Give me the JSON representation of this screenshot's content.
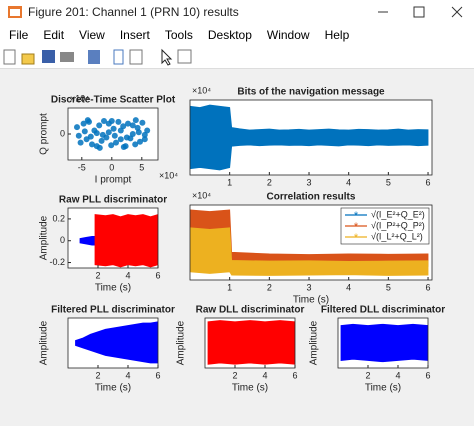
{
  "window": {
    "title": "Figure 201: Channel 1 (PRN 10) results",
    "menu": [
      "File",
      "Edit",
      "View",
      "Insert",
      "Tools",
      "Desktop",
      "Window",
      "Help"
    ]
  },
  "chart_data": [
    {
      "type": "scatter",
      "title": "Discrete-Time Scatter Plot",
      "xlabel": "I prompt",
      "ylabel": "Q prompt",
      "x_exponent": "×10⁴",
      "y_exponent": "×10⁴",
      "xlim": [
        -73000,
        77000
      ],
      "ylim": [
        -15000,
        15000
      ],
      "xticks": [
        {
          "value": -50000,
          "label": "-5"
        },
        {
          "value": 0,
          "label": "0"
        },
        {
          "value": 50000,
          "label": "5"
        }
      ],
      "yticks": [
        0
      ],
      "series": [
        {
          "color": "#0072bd",
          "x": [
            -58000,
            -52000,
            -47000,
            -42000,
            -38000,
            -33000,
            -29000,
            -25000,
            -21000,
            -17000,
            -13000,
            -9000,
            -5000,
            -1000,
            3000,
            7000,
            11000,
            15000,
            19000,
            23000,
            27000,
            31000,
            35000,
            39000,
            43000,
            47000,
            51000,
            55000,
            59000,
            -55000,
            -45000,
            -35000,
            -25000,
            -15000,
            -5000,
            5000,
            15000,
            25000,
            35000,
            45000,
            55000,
            -40000,
            -20000,
            0,
            20000,
            40000
          ],
          "y": [
            4000,
            -5000,
            6000,
            -3000,
            7000,
            -6000,
            2000,
            -7000,
            5000,
            -4000,
            7500,
            -2000,
            6000,
            -6500,
            3000,
            -5000,
            7000,
            -3000,
            4500,
            -7000,
            6000,
            -2500,
            5000,
            -6000,
            3500,
            -4500,
            6500,
            -3000,
            2000,
            -1000,
            1500,
            -1500,
            500,
            -500,
            1000,
            -1000,
            2000,
            -2000,
            0,
            1000,
            -500,
            8000,
            -8000,
            7500,
            -7500,
            8000
          ]
        }
      ]
    },
    {
      "type": "line",
      "title": "Bits of the navigation message",
      "y_exponent": "×10⁴",
      "xlim": [
        0,
        6.1
      ],
      "ylim": [
        -15000,
        15000
      ],
      "xticks": [
        1,
        2,
        3,
        4,
        5,
        6
      ],
      "series": [
        {
          "color": "#0072bd",
          "x": [
            0,
            0.25,
            0.5,
            0.75,
            1,
            1.05,
            1.25,
            1.5,
            1.75,
            2,
            2.25,
            2.5,
            2.75,
            3,
            3.25,
            3.5,
            3.75,
            4,
            4.25,
            4.5,
            4.75,
            5,
            5.25,
            5.5,
            5.75,
            6
          ],
          "upper": [
            12500,
            12000,
            13000,
            12500,
            12000,
            4000,
            3500,
            3000,
            3200,
            3400,
            3000,
            3100,
            3300,
            3000,
            3200,
            3400,
            3100,
            3000,
            3300,
            3200,
            3000,
            3100,
            3400,
            3000,
            3200,
            3100
          ],
          "lower": [
            -12500,
            -12000,
            -12500,
            -13000,
            -12000,
            -3500,
            -3200,
            -3000,
            -3300,
            -3100,
            -3000,
            -3200,
            -3100,
            -3300,
            -3000,
            -3200,
            -3400,
            -3000,
            -3100,
            -3300,
            -3000,
            -3200,
            -3100,
            -3000,
            -3300,
            -3100
          ]
        }
      ]
    },
    {
      "type": "line",
      "title": "Raw PLL discriminator",
      "xlabel": "Time (s)",
      "ylabel": "Amplitude",
      "xlim": [
        0,
        6
      ],
      "ylim": [
        -0.25,
        0.3
      ],
      "xticks": [
        2,
        4,
        6
      ],
      "yticks": [
        -0.2,
        0,
        0.2
      ],
      "series": [
        {
          "color": "#0000ff",
          "x": [
            0.8,
            1.2,
            1.6,
            1.8
          ],
          "upper": [
            0.02,
            0.03,
            0.04,
            0.04
          ],
          "lower": [
            -0.02,
            -0.03,
            -0.04,
            -0.04
          ]
        },
        {
          "color": "#ff0000",
          "x": [
            1.8,
            2.5,
            3,
            3.5,
            4,
            4.5,
            5,
            5.5,
            6
          ],
          "upper": [
            0.24,
            0.23,
            0.24,
            0.22,
            0.24,
            0.23,
            0.24,
            0.22,
            0.24
          ],
          "lower": [
            -0.22,
            -0.23,
            -0.22,
            -0.24,
            -0.22,
            -0.23,
            -0.22,
            -0.24,
            -0.22
          ]
        }
      ]
    },
    {
      "type": "line",
      "title": "Correlation results",
      "xlabel": "Time (s)",
      "y_exponent": "×10⁴",
      "xlim": [
        0,
        6.1
      ],
      "ylim": [
        0,
        23000
      ],
      "xticks": [
        1,
        2,
        3,
        4,
        5,
        6
      ],
      "legend": "northeast",
      "series": [
        {
          "name": "√(I_E²+Q_E²)",
          "color": "#0072bd",
          "x": [
            0,
            1,
            1.05,
            2,
            3,
            4,
            5,
            6
          ],
          "upper": [
            13000,
            13000,
            6500,
            6000,
            6200,
            6000,
            6100,
            6000
          ],
          "lower": [
            9000,
            9000,
            4000,
            4200,
            4000,
            4100,
            4000,
            4200
          ]
        },
        {
          "name": "√(I_P²+Q_P²)",
          "color": "#d95319",
          "x": [
            0,
            0.5,
            1,
            1.05,
            2,
            3,
            4,
            5,
            6
          ],
          "upper": [
            21500,
            21000,
            21500,
            8500,
            8000,
            7800,
            8000,
            7900,
            8000
          ],
          "lower": [
            15000,
            14500,
            15000,
            4500,
            4600,
            4500,
            4400,
            4500,
            4600
          ]
        },
        {
          "name": "√(I_L²+Q_L²)",
          "color": "#edb120",
          "x": [
            0,
            0.5,
            1,
            1.05,
            2,
            3,
            4,
            5,
            6
          ],
          "upper": [
            16000,
            15500,
            16000,
            6000,
            5800,
            5900,
            5700,
            5800,
            5900
          ],
          "lower": [
            2500,
            2000,
            2500,
            1500,
            1400,
            1500,
            1600,
            1400,
            1500
          ]
        }
      ]
    },
    {
      "type": "line",
      "title": "Filtered PLL discriminator",
      "xlabel": "Time (s)",
      "ylabel": "Amplitude",
      "xlim": [
        0,
        6
      ],
      "ylim": [
        -1,
        1
      ],
      "xticks": [
        2,
        4,
        6
      ],
      "series": [
        {
          "color": "#0000ff",
          "x": [
            0.5,
            1,
            1.5,
            2,
            2.5,
            3,
            3.5,
            4,
            4.5,
            5,
            5.5,
            6
          ],
          "upper": [
            0.1,
            0.2,
            0.35,
            0.45,
            0.55,
            0.6,
            0.65,
            0.7,
            0.75,
            0.8,
            0.8,
            0.85
          ],
          "lower": [
            -0.1,
            -0.2,
            -0.3,
            -0.4,
            -0.5,
            -0.55,
            -0.6,
            -0.65,
            -0.7,
            -0.75,
            -0.8,
            -0.8
          ]
        }
      ]
    },
    {
      "type": "line",
      "title": "Raw DLL discriminator",
      "xlabel": "Time (s)",
      "ylabel": "Amplitude",
      "xlim": [
        0,
        6
      ],
      "ylim": [
        -1,
        1
      ],
      "xticks": [
        2,
        4,
        6
      ],
      "series": [
        {
          "color": "#ff0000",
          "x": [
            0.2,
            1,
            2,
            3,
            4,
            5,
            6
          ],
          "upper": [
            0.85,
            0.9,
            0.85,
            0.9,
            0.85,
            0.9,
            0.85
          ],
          "lower": [
            -0.85,
            -0.8,
            -0.85,
            -0.8,
            -0.85,
            -0.8,
            -0.85
          ]
        }
      ]
    },
    {
      "type": "line",
      "title": "Filtered DLL discriminator",
      "xlabel": "Time (s)",
      "ylabel": "Amplitude",
      "xlim": [
        0,
        6
      ],
      "ylim": [
        -1,
        1
      ],
      "xticks": [
        2,
        4,
        6
      ],
      "series": [
        {
          "color": "#0000ff",
          "x": [
            0.2,
            1,
            2,
            3,
            4,
            5,
            6
          ],
          "upper": [
            0.7,
            0.75,
            0.7,
            0.75,
            0.7,
            0.75,
            0.7
          ],
          "lower": [
            -0.7,
            -0.65,
            -0.7,
            -0.75,
            -0.7,
            -0.65,
            -0.7
          ]
        }
      ]
    }
  ]
}
